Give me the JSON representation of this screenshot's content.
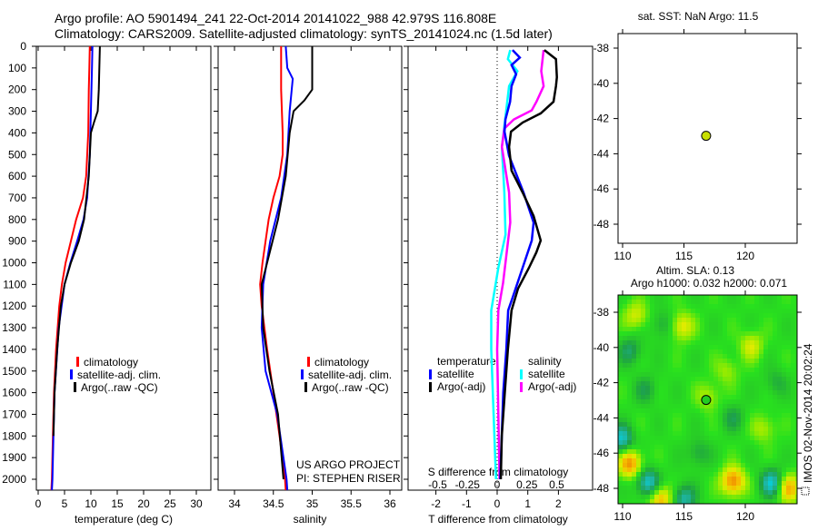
{
  "header": {
    "title_line1": "Argo profile: AO 5901494_241 22-Oct-2014 20141022_988 42.979S 116.808E",
    "title_line2": "Climatology: CARS2009. Satellite-adjusted climatology: synTS_20141024.nc (1.5d later)"
  },
  "colors": {
    "climatology": "#ff0000",
    "satellite": "#0000ff",
    "argo": "#000000",
    "sal_satellite": "#00ffff",
    "sal_argo": "#ff00ff",
    "float_marker": "#c8e000"
  },
  "legends": {
    "profile": [
      "climatology",
      "satellite-adj. clim.",
      "Argo(..raw -QC)"
    ],
    "diff_temp_head": "temperature",
    "diff_sal_head": "salinity",
    "diff_temp": [
      "satellite",
      "Argo(-adj)"
    ],
    "diff_sal": [
      "satellite",
      "Argo(-adj)"
    ]
  },
  "credits": {
    "project": "US ARGO PROJECT",
    "pi": "PI: STEPHEN RISER"
  },
  "sst_map": {
    "title": "sat. SST: NaN Argo: 11.5"
  },
  "sla_map": {
    "title1": "Altim. SLA: 0.13",
    "title2": "Argo h1000: 0.032 h2000: 0.071",
    "stamp": "IMOS 02-Nov-2014 20:02:24"
  },
  "chart_data": [
    {
      "type": "line",
      "id": "temperature",
      "xlabel": "temperature (deg C)",
      "ylabel": "",
      "xlim": [
        -0.3,
        32.7
      ],
      "ylim": [
        2050,
        0
      ],
      "xticks": [
        "0",
        "5",
        "10",
        "15",
        "20",
        "25",
        "30"
      ],
      "yticks": [
        "0",
        "100",
        "200",
        "300",
        "400",
        "500",
        "600",
        "700",
        "800",
        "900",
        "1000",
        "1100",
        "1200",
        "1300",
        "1400",
        "1500",
        "1600",
        "1700",
        "1800",
        "1900",
        "2000"
      ],
      "series": [
        {
          "name": "climatology",
          "points": [
            [
              0,
              9.8
            ],
            [
              100,
              9.7
            ],
            [
              200,
              9.6
            ],
            [
              400,
              9.5
            ],
            [
              600,
              9.1
            ],
            [
              700,
              8.5
            ],
            [
              800,
              7.2
            ],
            [
              900,
              6.2
            ],
            [
              1000,
              5.2
            ],
            [
              1100,
              4.5
            ],
            [
              1200,
              4.0
            ],
            [
              1400,
              3.4
            ],
            [
              1600,
              3.0
            ],
            [
              1800,
              2.8
            ],
            [
              2000,
              2.6
            ],
            [
              2050,
              2.5
            ]
          ]
        },
        {
          "name": "satellite-adj. clim.",
          "points": [
            [
              0,
              10.3
            ],
            [
              100,
              10.2
            ],
            [
              300,
              10.0
            ],
            [
              500,
              9.8
            ],
            [
              700,
              9.3
            ],
            [
              800,
              8.6
            ],
            [
              900,
              7.4
            ],
            [
              1000,
              6.1
            ],
            [
              1100,
              5.0
            ],
            [
              1300,
              3.9
            ],
            [
              1600,
              3.1
            ],
            [
              1800,
              2.9
            ],
            [
              2000,
              2.7
            ],
            [
              2050,
              2.6
            ]
          ]
        },
        {
          "name": "Argo(..raw -QC)",
          "points": [
            [
              0,
              11.7
            ],
            [
              100,
              11.6
            ],
            [
              200,
              11.5
            ],
            [
              300,
              11.3
            ],
            [
              350,
              10.6
            ],
            [
              400,
              10.0
            ],
            [
              600,
              9.6
            ],
            [
              800,
              8.7
            ],
            [
              900,
              7.7
            ],
            [
              1000,
              6.2
            ],
            [
              1100,
              5.0
            ],
            [
              1200,
              4.3
            ],
            [
              1400,
              3.6
            ],
            [
              1600,
              3.1
            ],
            [
              1800,
              2.9
            ]
          ]
        }
      ]
    },
    {
      "type": "line",
      "id": "salinity",
      "xlabel": "salinity",
      "xlim": [
        33.79,
        36.15
      ],
      "ylim": [
        2050,
        0
      ],
      "xticks": [
        "34",
        "34.5",
        "35",
        "35.5",
        "36"
      ],
      "series": [
        {
          "name": "climatology",
          "points": [
            [
              0,
              34.6
            ],
            [
              200,
              34.6
            ],
            [
              400,
              34.62
            ],
            [
              500,
              34.62
            ],
            [
              600,
              34.58
            ],
            [
              700,
              34.5
            ],
            [
              800,
              34.44
            ],
            [
              900,
              34.4
            ],
            [
              1000,
              34.36
            ],
            [
              1100,
              34.33
            ],
            [
              1200,
              34.35
            ],
            [
              1400,
              34.42
            ],
            [
              1600,
              34.5
            ],
            [
              1800,
              34.58
            ],
            [
              2000,
              34.65
            ],
            [
              2050,
              34.66
            ]
          ]
        },
        {
          "name": "satellite-adj. clim.",
          "points": [
            [
              0,
              34.66
            ],
            [
              100,
              34.68
            ],
            [
              150,
              34.75
            ],
            [
              300,
              34.71
            ],
            [
              500,
              34.68
            ],
            [
              700,
              34.6
            ],
            [
              900,
              34.46
            ],
            [
              1100,
              34.37
            ],
            [
              1300,
              34.35
            ],
            [
              1500,
              34.4
            ],
            [
              1700,
              34.55
            ],
            [
              2000,
              34.67
            ],
            [
              2050,
              34.68
            ]
          ]
        },
        {
          "name": "Argo(..raw -QC)",
          "points": [
            [
              0,
              35.0
            ],
            [
              100,
              35.0
            ],
            [
              200,
              35.0
            ],
            [
              250,
              34.9
            ],
            [
              300,
              34.76
            ],
            [
              400,
              34.71
            ],
            [
              600,
              34.66
            ],
            [
              800,
              34.56
            ],
            [
              900,
              34.49
            ],
            [
              1100,
              34.35
            ],
            [
              1300,
              34.37
            ],
            [
              1500,
              34.45
            ],
            [
              1700,
              34.56
            ],
            [
              2000,
              34.63
            ]
          ]
        }
      ]
    },
    {
      "type": "line",
      "id": "difference",
      "xlabel": "T difference from climatology",
      "xlabel_top": "S difference from climatology",
      "xlim_T": [
        -2.9,
        3.1
      ],
      "xlim_S": [
        -0.74,
        0.8
      ],
      "ylim": [
        2050,
        0
      ],
      "xticks_T": [
        "-2",
        "-1",
        "0",
        "1",
        "2"
      ],
      "xticks_S": [
        "-0.5",
        "-0.25",
        "0",
        "0.25",
        "0.5"
      ],
      "series": [
        {
          "name": "temperature satellite",
          "axis": "T",
          "points": [
            [
              17,
              0.5
            ],
            [
              52,
              0.74
            ],
            [
              87,
              0.47
            ],
            [
              129,
              0.62
            ],
            [
              184,
              0.47
            ],
            [
              256,
              0.42
            ],
            [
              338,
              0.27
            ],
            [
              394,
              0.24
            ],
            [
              506,
              0.39
            ],
            [
              675,
              0.86
            ],
            [
              814,
              1.19
            ],
            [
              897,
              1.13
            ],
            [
              1023,
              0.83
            ],
            [
              1162,
              0.5
            ],
            [
              1220,
              0.36
            ],
            [
              1400,
              0.3
            ],
            [
              1600,
              0.2
            ],
            [
              2000,
              0.1
            ]
          ]
        },
        {
          "name": "temperature Argo(-adj)",
          "axis": "T",
          "points": [
            [
              17,
              1.54
            ],
            [
              59,
              1.92
            ],
            [
              143,
              1.95
            ],
            [
              184,
              1.92
            ],
            [
              256,
              1.84
            ],
            [
              310,
              1.42
            ],
            [
              352,
              0.83
            ],
            [
              394,
              0.45
            ],
            [
              465,
              0.39
            ],
            [
              574,
              0.47
            ],
            [
              675,
              0.83
            ],
            [
              784,
              1.19
            ],
            [
              897,
              1.42
            ],
            [
              952,
              1.28
            ],
            [
              1023,
              1.04
            ],
            [
              1120,
              0.68
            ],
            [
              1220,
              0.47
            ],
            [
              1400,
              0.35
            ],
            [
              1600,
              0.25
            ],
            [
              1800,
              0.15
            ],
            [
              2000,
              0.12
            ]
          ]
        },
        {
          "name": "salinity satellite",
          "axis": "S",
          "points": [
            [
              17,
              0.11
            ],
            [
              59,
              0.09
            ],
            [
              115,
              0.17
            ],
            [
              184,
              0.1
            ],
            [
              324,
              0.07
            ],
            [
              465,
              0.04
            ],
            [
              675,
              0.06
            ],
            [
              870,
              0.07
            ],
            [
              1023,
              0.01
            ],
            [
              1220,
              -0.05
            ],
            [
              1400,
              -0.05
            ],
            [
              1700,
              -0.03
            ],
            [
              2000,
              -0.01
            ]
          ]
        },
        {
          "name": "salinity Argo(-adj)",
          "axis": "S",
          "points": [
            [
              17,
              0.39
            ],
            [
              115,
              0.37
            ],
            [
              184,
              0.39
            ],
            [
              256,
              0.33
            ],
            [
              296,
              0.29
            ],
            [
              338,
              0.14
            ],
            [
              380,
              0.06
            ],
            [
              465,
              0.04
            ],
            [
              675,
              0.1
            ],
            [
              814,
              0.11
            ],
            [
              952,
              0.08
            ],
            [
              1093,
              0.05
            ],
            [
              1220,
              0.01
            ],
            [
              1400,
              0.0
            ],
            [
              1700,
              0.01
            ],
            [
              2000,
              0.02
            ]
          ]
        }
      ]
    },
    {
      "type": "scatter",
      "id": "sst_map",
      "xlim": [
        109.6,
        124.2
      ],
      "ylim": [
        -48.9,
        -37.1
      ],
      "xticks": [
        "110",
        "115",
        "120"
      ],
      "yticks": [
        "-38",
        "-40",
        "-42",
        "-44",
        "-46",
        "-48"
      ],
      "points": [
        {
          "lon": 116.808,
          "lat": -42.979
        }
      ]
    },
    {
      "type": "heatmap",
      "id": "sla_map",
      "xlim": [
        109.6,
        124.2
      ],
      "ylim": [
        -48.9,
        -37.0
      ],
      "xticks": [
        "110",
        "115",
        "120"
      ],
      "yticks": [
        "-38",
        "-40",
        "-42",
        "-44",
        "-46",
        "-48"
      ],
      "point": {
        "lon": 116.808,
        "lat": -42.979
      },
      "anomaly_features": [
        {
          "lon": 110.6,
          "lat": -46.6,
          "v": 0.8
        },
        {
          "lon": 119.0,
          "lat": -47.6,
          "v": 0.85
        },
        {
          "lon": 113.1,
          "lat": -48.6,
          "v": 0.7
        },
        {
          "lon": 112.1,
          "lat": -47.7,
          "v": -0.75
        },
        {
          "lon": 122.2,
          "lat": -47.7,
          "v": -0.75
        },
        {
          "lon": 115.0,
          "lat": -48.6,
          "v": -0.6
        },
        {
          "lon": 109.9,
          "lat": -45.2,
          "v": -0.7
        },
        {
          "lon": 110.6,
          "lat": -40.2,
          "v": -0.4
        },
        {
          "lon": 114.8,
          "lat": -38.8,
          "v": 0.5
        },
        {
          "lon": 111.1,
          "lat": -38.2,
          "v": 0.4
        },
        {
          "lon": 120.5,
          "lat": -39.9,
          "v": 0.4
        },
        {
          "lon": 117.0,
          "lat": -42.8,
          "v": 0.3
        },
        {
          "lon": 121.5,
          "lat": -44.6,
          "v": 0.3
        },
        {
          "lon": 113.3,
          "lat": -38.7,
          "v": -0.3
        },
        {
          "lon": 111.9,
          "lat": -42.4,
          "v": -0.3
        },
        {
          "lon": 119.0,
          "lat": -44.0,
          "v": -0.3
        },
        {
          "lon": 118.5,
          "lat": -41.3,
          "v": 0.25
        },
        {
          "lon": 123.5,
          "lat": -48.0,
          "v": 0.7
        },
        {
          "lon": 116.2,
          "lat": -46.0,
          "v": -0.3
        },
        {
          "lon": 122.5,
          "lat": -42.0,
          "v": -0.25
        }
      ]
    }
  ]
}
